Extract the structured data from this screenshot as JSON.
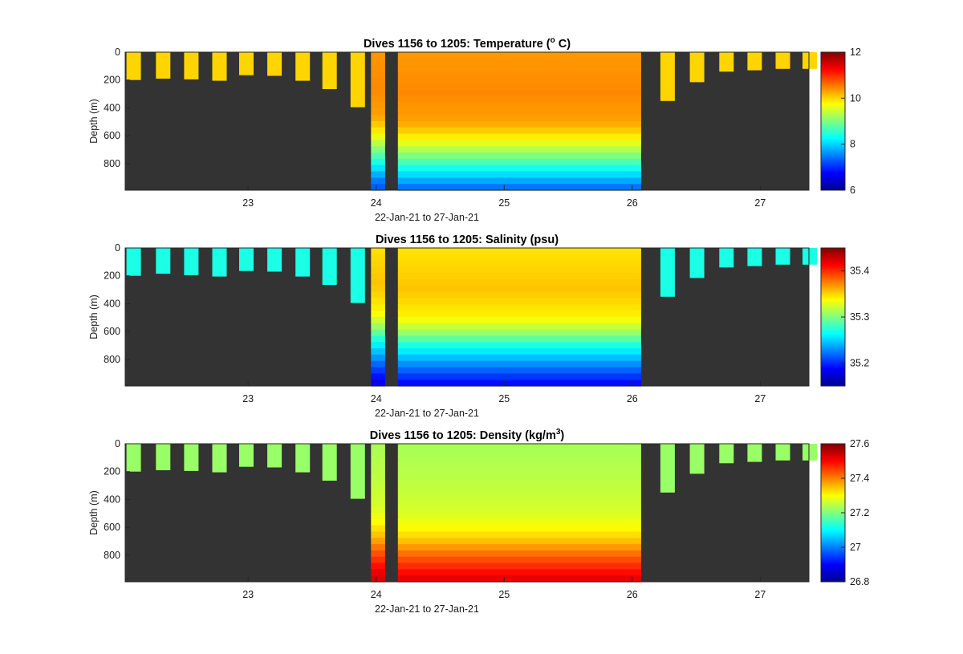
{
  "chart_data": [
    {
      "type": "heatmap",
      "title": "Dives 1156 to 1205: Temperature (",
      "title_sup": "o",
      "title_end": " C)",
      "xlabel": "22-Jan-21 to 27-Jan-21",
      "ylabel": "Depth (m)",
      "x_ticks": [
        "23",
        "24",
        "25",
        "26",
        "27"
      ],
      "y_ticks": [
        "0",
        "200",
        "400",
        "600",
        "800"
      ],
      "xlim": [
        22.04,
        27.38
      ],
      "ylim": [
        0,
        990
      ],
      "y_reversed": true,
      "colorbar": {
        "min": 6,
        "max": 12,
        "ticks": [
          "6",
          "8",
          "10",
          "12"
        ],
        "colormap": "jet"
      },
      "shallow_dives": {
        "days": [
          22.05,
          22.28,
          22.5,
          22.72,
          22.93,
          23.15,
          23.37,
          23.58,
          23.8,
          26.22,
          26.45,
          26.68,
          26.9,
          27.12,
          27.33
        ],
        "max_depth": [
          200,
          190,
          195,
          205,
          165,
          170,
          205,
          265,
          395,
          350,
          215,
          140,
          130,
          120,
          120
        ],
        "value": 10.0
      },
      "deep_dives": {
        "start_day": 24.17,
        "end_day": 26.07,
        "max_depth": 990,
        "first_dive_day": 23.96,
        "first_dive_end": 24.07
      },
      "profile": {
        "depth": [
          0,
          300,
          500,
          600,
          700,
          800,
          900,
          990
        ],
        "value": [
          10.35,
          10.45,
          10.3,
          9.9,
          9.3,
          8.6,
          7.9,
          7.3
        ]
      }
    },
    {
      "type": "heatmap",
      "title": "Dives 1156 to 1205: Salinity (psu)",
      "title_sup": "",
      "title_end": "",
      "xlabel": "22-Jan-21 to 27-Jan-21",
      "ylabel": "Depth (m)",
      "x_ticks": [
        "23",
        "24",
        "25",
        "26",
        "27"
      ],
      "y_ticks": [
        "0",
        "200",
        "400",
        "600",
        "800"
      ],
      "xlim": [
        22.04,
        27.38
      ],
      "ylim": [
        0,
        990
      ],
      "y_reversed": true,
      "colorbar": {
        "min": 35.15,
        "max": 35.45,
        "ticks": [
          "35.2",
          "35.3",
          "35.4"
        ],
        "colormap": "jet"
      },
      "shallow_dives": {
        "days": [
          22.05,
          22.28,
          22.5,
          22.72,
          22.93,
          23.15,
          23.37,
          23.58,
          23.8,
          26.22,
          26.45,
          26.68,
          26.9,
          27.12,
          27.33
        ],
        "max_depth": [
          200,
          185,
          195,
          205,
          165,
          170,
          205,
          265,
          395,
          350,
          215,
          140,
          130,
          120,
          120
        ],
        "value": 35.27
      },
      "deep_dives": {
        "start_day": 24.17,
        "end_day": 26.07,
        "max_depth": 990,
        "first_dive_day": 23.96,
        "first_dive_end": 24.07
      },
      "profile": {
        "depth": [
          0,
          300,
          500,
          600,
          700,
          800,
          900,
          990
        ],
        "value": [
          35.345,
          35.355,
          35.34,
          35.31,
          35.27,
          35.24,
          35.21,
          35.185
        ]
      }
    },
    {
      "type": "heatmap",
      "title": "Dives 1156 to 1205: Density (kg/m",
      "title_sup": "3",
      "title_end": ")",
      "xlabel": "22-Jan-21 to 27-Jan-21",
      "ylabel": "Depth (m)",
      "x_ticks": [
        "23",
        "24",
        "25",
        "26",
        "27"
      ],
      "y_ticks": [
        "0",
        "200",
        "400",
        "600",
        "800"
      ],
      "xlim": [
        22.04,
        27.38
      ],
      "ylim": [
        0,
        990
      ],
      "y_reversed": true,
      "colorbar": {
        "min": 26.8,
        "max": 27.6,
        "ticks": [
          "26.8",
          "27",
          "27.2",
          "27.4",
          "27.6"
        ],
        "colormap": "jet"
      },
      "shallow_dives": {
        "days": [
          22.05,
          22.28,
          22.5,
          22.72,
          22.93,
          23.15,
          23.37,
          23.58,
          23.8,
          26.22,
          26.45,
          26.68,
          26.9,
          27.12,
          27.33
        ],
        "max_depth": [
          200,
          190,
          195,
          205,
          165,
          170,
          205,
          265,
          395,
          350,
          215,
          140,
          130,
          120,
          120
        ],
        "value": 27.22
      },
      "deep_dives": {
        "start_day": 24.17,
        "end_day": 26.07,
        "max_depth": 990,
        "first_dive_day": 23.96,
        "first_dive_end": 24.07
      },
      "profile": {
        "depth": [
          0,
          300,
          500,
          600,
          700,
          800,
          900,
          990
        ],
        "value": [
          27.23,
          27.25,
          27.27,
          27.3,
          27.35,
          27.42,
          27.48,
          27.53
        ]
      }
    }
  ]
}
